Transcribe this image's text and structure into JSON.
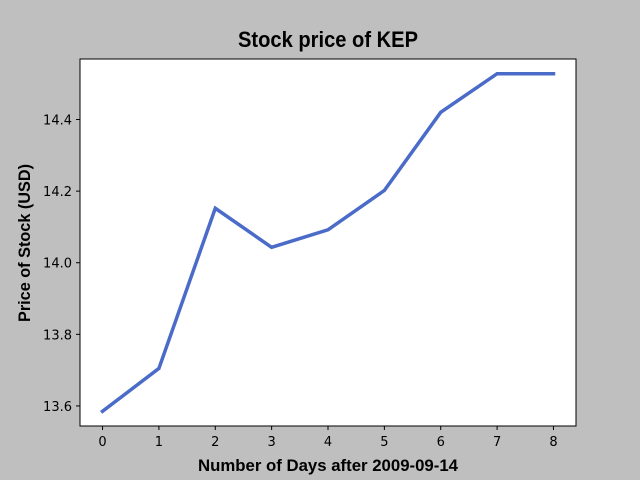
{
  "chart_data": {
    "type": "line",
    "title": "Stock price of KEP",
    "xlabel": "Number of Days after 2009-09-14",
    "ylabel": "Price of Stock (USD)",
    "x": [
      0,
      1,
      2,
      3,
      4,
      5,
      6,
      7,
      8
    ],
    "series": [
      {
        "values": [
          13.585,
          13.705,
          14.152,
          14.043,
          14.092,
          14.202,
          14.42,
          14.528,
          14.528
        ]
      }
    ],
    "xlim": [
      -0.4,
      8.4
    ],
    "ylim": [
      13.544,
      14.569
    ],
    "x_ticks": [
      0,
      1,
      2,
      3,
      4,
      5,
      6,
      7,
      8
    ],
    "y_ticks": [
      13.6,
      13.8,
      14.0,
      14.2,
      14.4
    ],
    "y_tick_labels": [
      "13.6",
      "13.8",
      "14.0",
      "14.2",
      "14.4"
    ],
    "line_color": "#4a6bc8",
    "plot_background": "#ffffff",
    "figure_background": "#bfbfbf",
    "grid": false,
    "legend": "none"
  }
}
